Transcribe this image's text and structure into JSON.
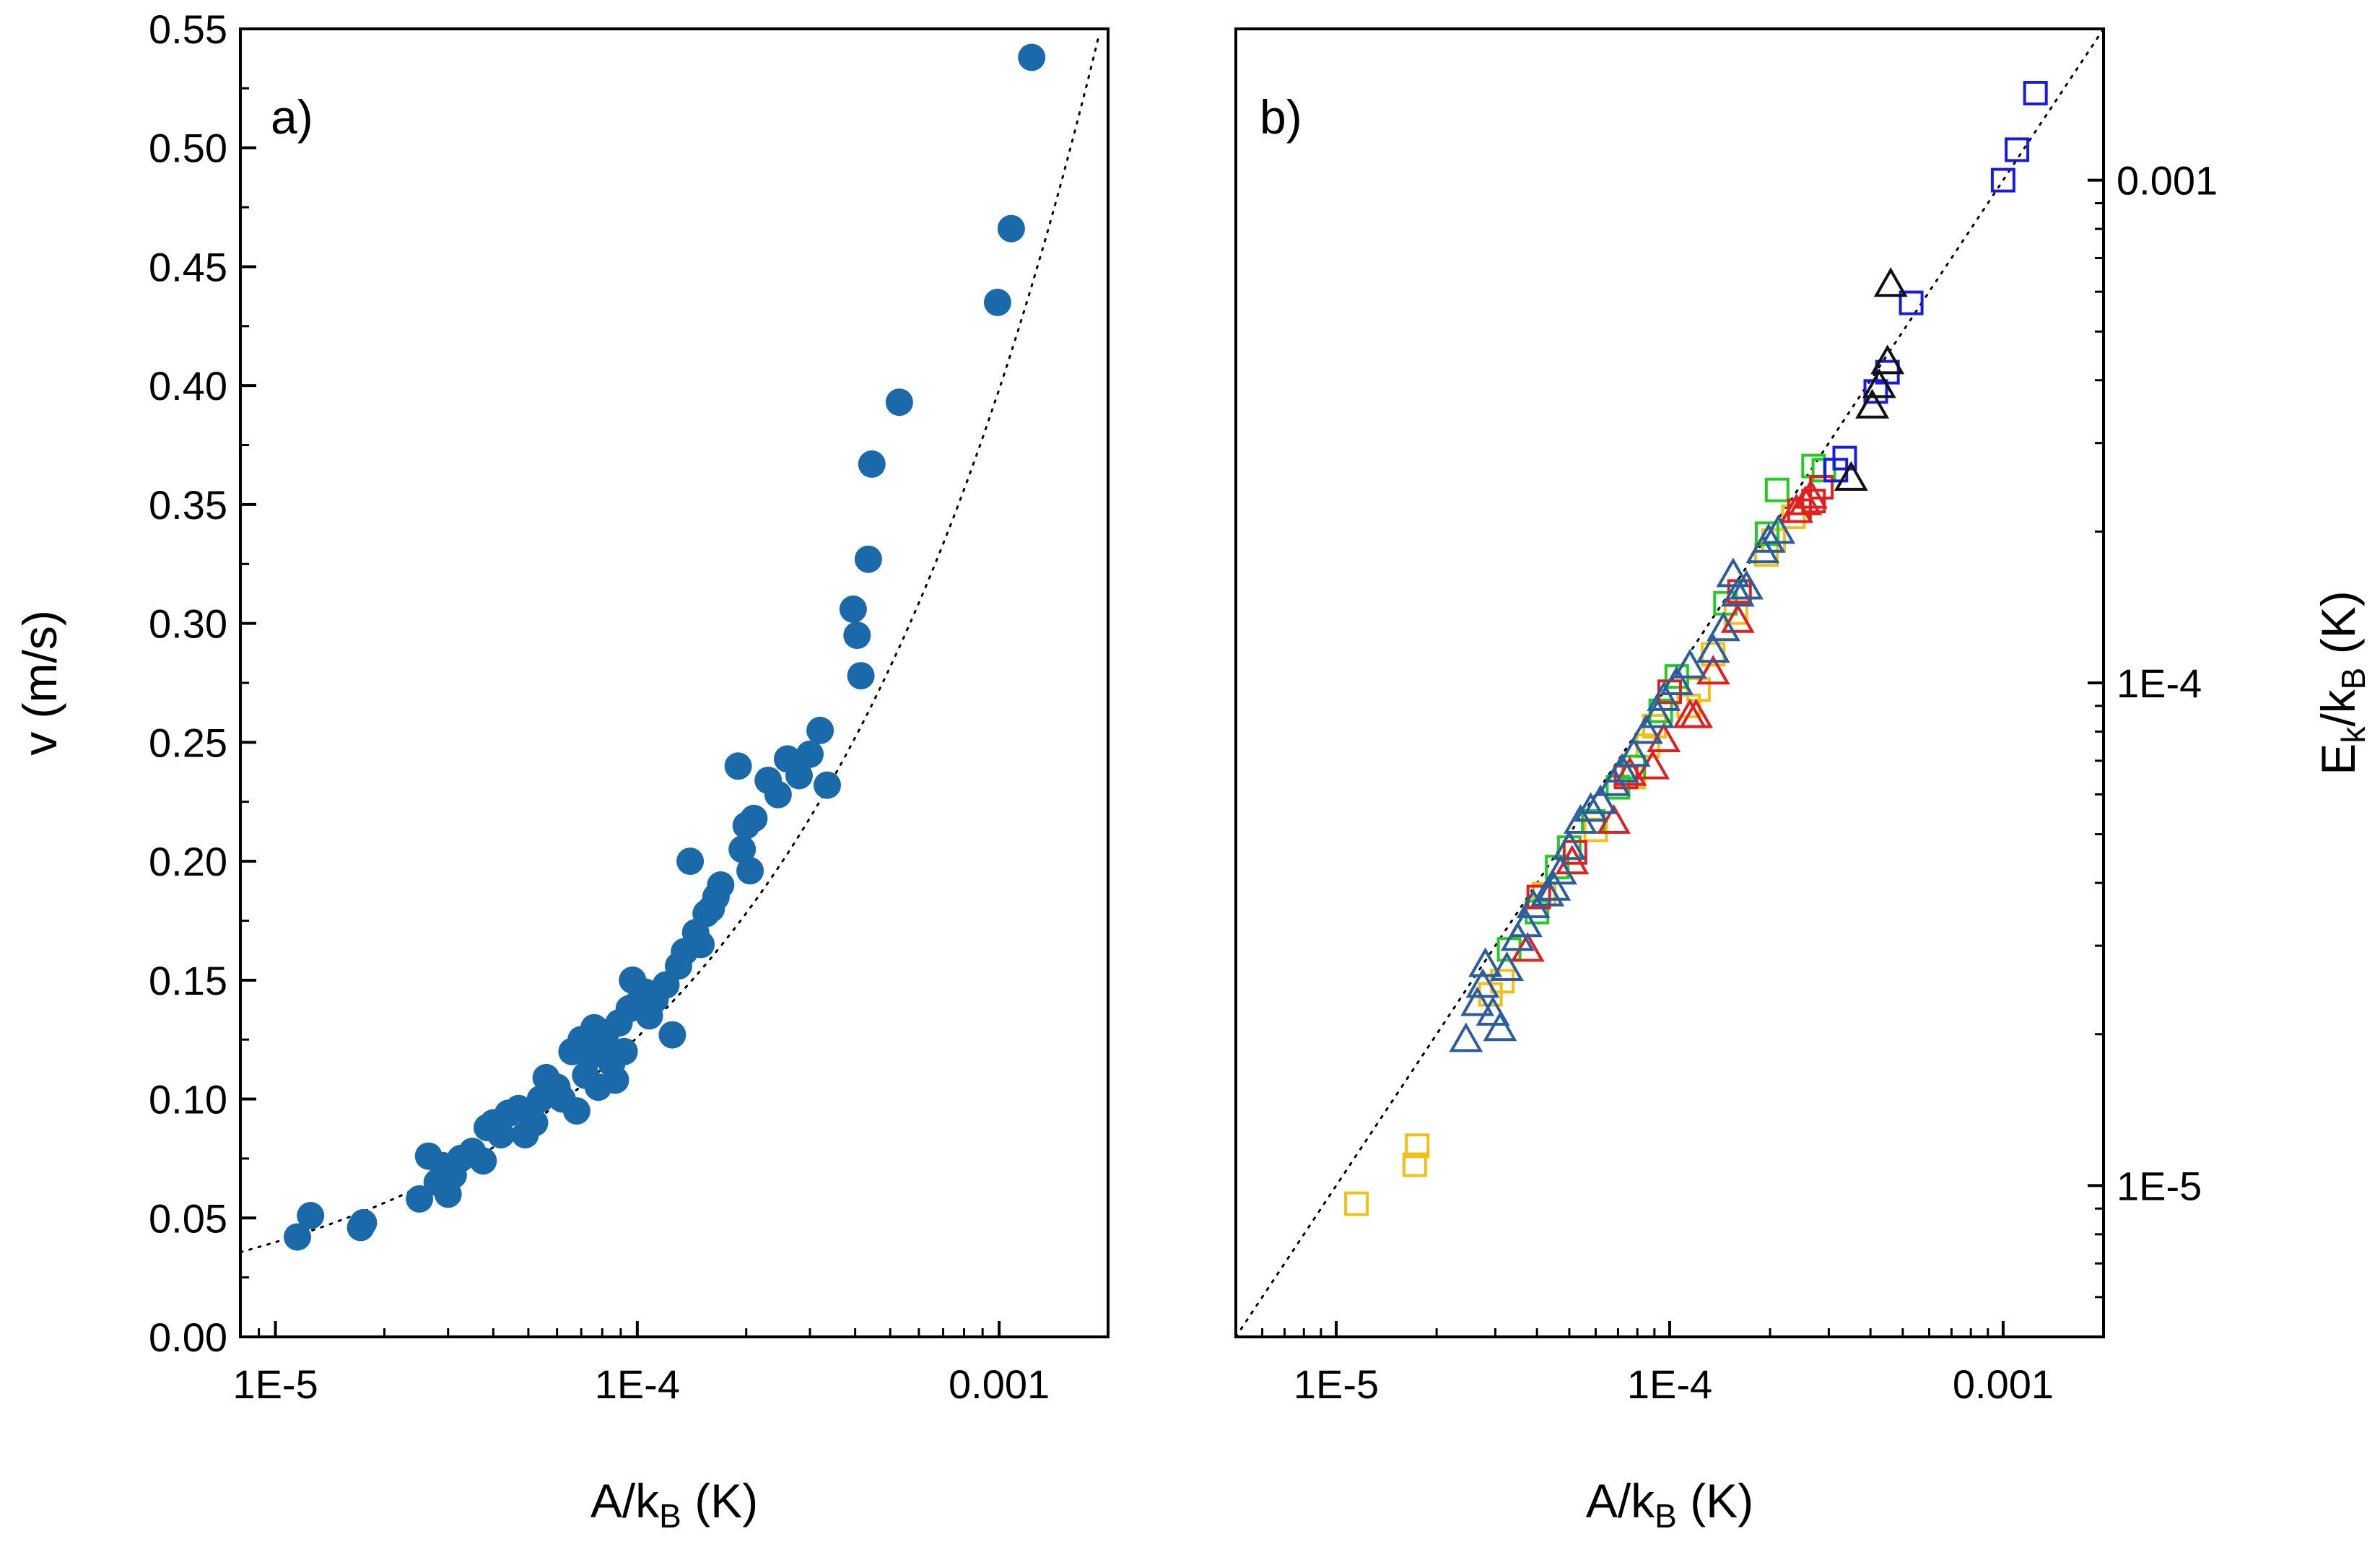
{
  "chart_data": [
    {
      "panel": "a",
      "type": "scatter",
      "panel_label": "a)",
      "xlabel": {
        "main": "A/k",
        "sub": "B",
        "unit": " (K)"
      },
      "ylabel": "v (m/s)",
      "xscale": "log",
      "xlim": [
        8e-06,
        0.002
      ],
      "ylim": [
        0,
        0.55
      ],
      "x_ticks": [
        {
          "v": 1e-05,
          "label": "1E-5"
        },
        {
          "v": 0.0001,
          "label": "1E-4"
        },
        {
          "v": 0.001,
          "label": "0.001"
        }
      ],
      "y_ticks": [
        {
          "v": 0.0,
          "label": "0.00"
        },
        {
          "v": 0.05,
          "label": "0.05"
        },
        {
          "v": 0.1,
          "label": "0.10"
        },
        {
          "v": 0.15,
          "label": "0.15"
        },
        {
          "v": 0.2,
          "label": "0.20"
        },
        {
          "v": 0.25,
          "label": "0.25"
        },
        {
          "v": 0.3,
          "label": "0.30"
        },
        {
          "v": 0.35,
          "label": "0.35"
        },
        {
          "v": 0.4,
          "label": "0.40"
        },
        {
          "v": 0.45,
          "label": "0.45"
        },
        {
          "v": 0.5,
          "label": "0.50"
        },
        {
          "v": 0.55,
          "label": "0.55"
        }
      ],
      "marker_color": "#1a6aaa",
      "fit": {
        "style": "dotted",
        "model": "v = 12.6 * sqrt(A/kB)",
        "coefficient": 12.6
      },
      "series": [
        {
          "name": "data",
          "points": [
            [
              1.15e-05,
              0.042
            ],
            [
              1.25e-05,
              0.051
            ],
            [
              1.72e-05,
              0.046
            ],
            [
              1.75e-05,
              0.048
            ],
            [
              2.5e-05,
              0.058
            ],
            [
              2.65e-05,
              0.076
            ],
            [
              2.8e-05,
              0.065
            ],
            [
              2.9e-05,
              0.072
            ],
            [
              3e-05,
              0.06
            ],
            [
              3.1e-05,
              0.068
            ],
            [
              3.25e-05,
              0.075
            ],
            [
              3.5e-05,
              0.078
            ],
            [
              3.75e-05,
              0.074
            ],
            [
              3.85e-05,
              0.088
            ],
            [
              4e-05,
              0.09
            ],
            [
              4.2e-05,
              0.085
            ],
            [
              4.4e-05,
              0.094
            ],
            [
              4.7e-05,
              0.096
            ],
            [
              4.9e-05,
              0.085
            ],
            [
              5.2e-05,
              0.09
            ],
            [
              5.4e-05,
              0.1
            ],
            [
              5.6e-05,
              0.109
            ],
            [
              6e-05,
              0.105
            ],
            [
              6.2e-05,
              0.1
            ],
            [
              6.6e-05,
              0.12
            ],
            [
              6.8e-05,
              0.095
            ],
            [
              7e-05,
              0.125
            ],
            [
              7.2e-05,
              0.11
            ],
            [
              7.4e-05,
              0.118
            ],
            [
              7.6e-05,
              0.13
            ],
            [
              7.8e-05,
              0.105
            ],
            [
              8e-05,
              0.122
            ],
            [
              8.2e-05,
              0.128
            ],
            [
              8.5e-05,
              0.115
            ],
            [
              8.7e-05,
              0.108
            ],
            [
              8.9e-05,
              0.132
            ],
            [
              9.2e-05,
              0.12
            ],
            [
              9.5e-05,
              0.138
            ],
            [
              9.7e-05,
              0.15
            ],
            [
              0.0001,
              0.14
            ],
            [
              0.000105,
              0.145
            ],
            [
              0.000108,
              0.135
            ],
            [
              0.000112,
              0.142
            ],
            [
              0.00012,
              0.148
            ],
            [
              0.000125,
              0.127
            ],
            [
              0.00013,
              0.156
            ],
            [
              0.000135,
              0.162
            ],
            [
              0.00014,
              0.2
            ],
            [
              0.000145,
              0.17
            ],
            [
              0.00015,
              0.165
            ],
            [
              0.000155,
              0.178
            ],
            [
              0.00016,
              0.18
            ],
            [
              0.000165,
              0.185
            ],
            [
              0.00017,
              0.19
            ],
            [
              0.00019,
              0.24
            ],
            [
              0.000195,
              0.205
            ],
            [
              0.0002,
              0.215
            ],
            [
              0.000205,
              0.196
            ],
            [
              0.00021,
              0.218
            ],
            [
              0.00023,
              0.234
            ],
            [
              0.000245,
              0.228
            ],
            [
              0.00026,
              0.243
            ],
            [
              0.00028,
              0.236
            ],
            [
              0.0003,
              0.245
            ],
            [
              0.00032,
              0.255
            ],
            [
              0.000335,
              0.232
            ],
            [
              0.000395,
              0.306
            ],
            [
              0.000405,
              0.295
            ],
            [
              0.000415,
              0.278
            ],
            [
              0.000435,
              0.327
            ],
            [
              0.000445,
              0.367
            ],
            [
              0.00053,
              0.393
            ],
            [
              0.00099,
              0.435
            ],
            [
              0.00108,
              0.466
            ],
            [
              0.00123,
              0.538
            ]
          ]
        }
      ]
    },
    {
      "panel": "b",
      "type": "scatter",
      "panel_label": "b)",
      "xlabel": {
        "main": "A/k",
        "sub": "B",
        "unit": " (K)"
      },
      "ylabel": {
        "main": "E",
        "sub1": "k",
        "mid": "/k",
        "sub2": "B",
        "unit": " (K)"
      },
      "xscale": "log",
      "yscale": "log",
      "xlim": [
        5e-06,
        0.002
      ],
      "ylim": [
        5e-06,
        0.002
      ],
      "x_ticks": [
        {
          "v": 1e-05,
          "label": "1E-5"
        },
        {
          "v": 0.0001,
          "label": "1E-4"
        },
        {
          "v": 0.001,
          "label": "0.001"
        }
      ],
      "y_ticks": [
        {
          "v": 1e-05,
          "label": "1E-5"
        },
        {
          "v": 0.0001,
          "label": "1E-4"
        },
        {
          "v": 0.001,
          "label": "0.001"
        }
      ],
      "y_axis_side": "right",
      "fit": {
        "style": "dotted",
        "model": "Ek/kB = A/kB",
        "slope": 1
      },
      "series": [
        {
          "name": "yellow squares",
          "marker": "square",
          "color": "#f2c012",
          "points": [
            [
              1.15e-05,
              9.2e-06
            ],
            [
              1.72e-05,
              1.1e-05
            ],
            [
              1.75e-05,
              1.2e-05
            ],
            [
              2.9e-05,
              2.4e-05
            ],
            [
              3.15e-05,
              2.55e-05
            ],
            [
              4.2e-05,
              3.8e-05
            ],
            [
              6e-05,
              5.1e-05
            ],
            [
              7.8e-05,
              6.5e-05
            ],
            [
              8.6e-05,
              7.5e-05
            ],
            [
              9e-05,
              8.2e-05
            ],
            [
              0.000114,
              9e-05
            ],
            [
              0.000122,
              9.7e-05
            ],
            [
              0.000135,
              0.000114
            ],
            [
              0.000158,
              0.000138
            ],
            [
              0.000195,
              0.00018
            ],
            [
              0.000205,
              0.000192
            ],
            [
              0.000235,
              0.000214
            ]
          ]
        },
        {
          "name": "green squares",
          "marker": "square",
          "color": "#22cc22",
          "points": [
            [
              3.3e-05,
              2.95e-05
            ],
            [
              4e-05,
              3.5e-05
            ],
            [
              4.6e-05,
              4.3e-05
            ],
            [
              5e-05,
              4.7e-05
            ],
            [
              5.9e-05,
              5.3e-05
            ],
            [
              7e-05,
              6.2e-05
            ],
            [
              7.8e-05,
              6.8e-05
            ],
            [
              9.4e-05,
              8.8e-05
            ],
            [
              0.000105,
              0.000103
            ],
            [
              0.000147,
              0.000144
            ],
            [
              0.000196,
              0.000198
            ],
            [
              0.00021,
              0.000242
            ],
            [
              0.00027,
              0.00027
            ],
            [
              0.00029,
              0.000265
            ]
          ]
        },
        {
          "name": "red squares",
          "marker": "square",
          "color": "#e02020",
          "points": [
            [
              4.05e-05,
              3.75e-05
            ],
            [
              5.2e-05,
              4.6e-05
            ],
            [
              7.4e-05,
              6.5e-05
            ],
            [
              0.0001,
              9.6e-05
            ],
            [
              0.000162,
              0.000152
            ],
            [
              0.000245,
              0.00022
            ],
            [
              0.00027,
              0.00023
            ],
            [
              0.000285,
              0.000245
            ]
          ]
        },
        {
          "name": "blue squares",
          "marker": "square",
          "color": "#1a1ae6",
          "points": [
            [
              0.000315,
              0.000265
            ],
            [
              0.000335,
              0.00028
            ],
            [
              0.000415,
              0.00038
            ],
            [
              0.00045,
              0.000415
            ],
            [
              0.00053,
              0.00057
            ],
            [
              0.001,
              0.001
            ],
            [
              0.0011,
              0.00115
            ],
            [
              0.00125,
              0.00149
            ]
          ]
        },
        {
          "name": "red triangles",
          "marker": "triangle",
          "color": "#e02020",
          "points": [
            [
              3.75e-05,
              2.95e-05
            ],
            [
              5.1e-05,
              4.4e-05
            ],
            [
              6.8e-05,
              5.3e-05
            ],
            [
              7.6e-05,
              6.6e-05
            ],
            [
              8.9e-05,
              6.8e-05
            ],
            [
              9.6e-05,
              7.7e-05
            ],
            [
              0.000115,
              8.6e-05
            ],
            [
              0.00012,
              8.6e-05
            ],
            [
              0.000135,
              0.000105
            ],
            [
              0.00016,
              0.000133
            ],
            [
              0.00024,
              0.00022
            ],
            [
              0.000255,
              0.000228
            ],
            [
              0.000265,
              0.000235
            ]
          ]
        },
        {
          "name": "steel-blue triangles",
          "marker": "triangle",
          "color": "#2c5e9e",
          "points": [
            [
              2.45e-05,
              1.95e-05
            ],
            [
              2.65e-05,
              2.3e-05
            ],
            [
              2.75e-05,
              2.5e-05
            ],
            [
              2.8e-05,
              2.75e-05
            ],
            [
              2.95e-05,
              2.2e-05
            ],
            [
              3.1e-05,
              2.05e-05
            ],
            [
              3.25e-05,
              2.7e-05
            ],
            [
              3.5e-05,
              3.1e-05
            ],
            [
              3.7e-05,
              3.3e-05
            ],
            [
              3.9e-05,
              3.6e-05
            ],
            [
              4.3e-05,
              3.8e-05
            ],
            [
              4.5e-05,
              3.9e-05
            ],
            [
              4.7e-05,
              4.2e-05
            ],
            [
              5e-05,
              4.7e-05
            ],
            [
              5.4e-05,
              5.3e-05
            ],
            [
              5.8e-05,
              5.6e-05
            ],
            [
              6.2e-05,
              5.8e-05
            ],
            [
              6.8e-05,
              6.3e-05
            ],
            [
              7.2e-05,
              6.7e-05
            ],
            [
              7.8e-05,
              7.2e-05
            ],
            [
              8.5e-05,
              8e-05
            ],
            [
              9.2e-05,
              8.6e-05
            ],
            [
              9.6e-05,
              9.3e-05
            ],
            [
              0.000105,
              0.0001
            ],
            [
              0.000115,
              0.000108
            ],
            [
              0.000135,
              0.000116
            ],
            [
              0.000145,
              0.000128
            ],
            [
              0.00016,
              0.00015
            ],
            [
              0.00017,
              0.000155
            ],
            [
              0.00019,
              0.000183
            ],
            [
              0.000198,
              0.000192
            ],
            [
              0.000212,
              0.0002
            ],
            [
              0.000155,
              0.000164
            ]
          ]
        },
        {
          "name": "black triangles",
          "marker": "triangle",
          "color": "#111111",
          "points": [
            [
              0.00035,
              0.000255
            ],
            [
              0.000405,
              0.000355
            ],
            [
              0.000425,
              0.00039
            ],
            [
              0.00045,
              0.000435
            ],
            [
              0.00046,
              0.00062
            ]
          ]
        }
      ]
    }
  ]
}
